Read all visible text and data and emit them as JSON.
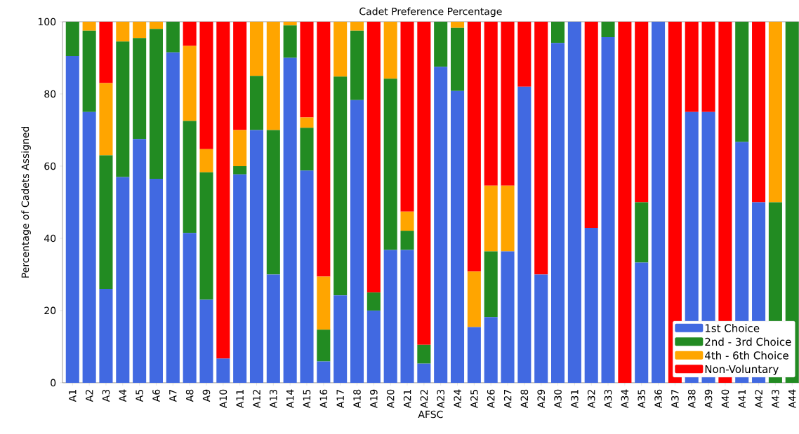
{
  "chart_data": {
    "type": "bar",
    "stacked": true,
    "title": "Cadet Preference Percentage",
    "xlabel": "AFSC",
    "ylabel": "Percentage of Cadets Assigned",
    "categories": [
      "A1",
      "A2",
      "A3",
      "A4",
      "A5",
      "A6",
      "A7",
      "A8",
      "A9",
      "A10",
      "A11",
      "A12",
      "A13",
      "A14",
      "A15",
      "A16",
      "A17",
      "A18",
      "A19",
      "A20",
      "A21",
      "A22",
      "A23",
      "A24",
      "A25",
      "A26",
      "A27",
      "A28",
      "A29",
      "A30",
      "A31",
      "A32",
      "A33",
      "A34",
      "A35",
      "A36",
      "A37",
      "A38",
      "A39",
      "A40",
      "A41",
      "A42",
      "A43",
      "A44"
    ],
    "series": [
      {
        "name": "1st Choice",
        "color": "#4169e1",
        "values": [
          90.5,
          75,
          26,
          57,
          67.5,
          56.5,
          91.5,
          41.5,
          23,
          6.7,
          57.7,
          70,
          30,
          90,
          58.8,
          5.9,
          24.2,
          78.3,
          20,
          36.8,
          36.8,
          5.3,
          87.5,
          80.8,
          15.4,
          18.2,
          36.4,
          82,
          30,
          94.1,
          100,
          42.9,
          95.7,
          0,
          33.3,
          100,
          0,
          75,
          75,
          0,
          66.7,
          50,
          0,
          0
        ]
      },
      {
        "name": "2nd - 3rd Choice",
        "color": "#228b22",
        "values": [
          9.5,
          22.5,
          37,
          37.5,
          28,
          41.5,
          8.5,
          31,
          35.3,
          0,
          2.3,
          15,
          40,
          9,
          11.8,
          8.8,
          60.6,
          19.2,
          5,
          47.4,
          5.3,
          5.2,
          12.5,
          17.5,
          0,
          18.2,
          0,
          0,
          0,
          5.9,
          0,
          0,
          4.3,
          0,
          16.7,
          0,
          0,
          0,
          0,
          0,
          33.3,
          0,
          50,
          100
        ]
      },
      {
        "name": "4th - 6th Choice",
        "color": "#ffa500",
        "values": [
          0,
          2.5,
          20,
          5.5,
          4.5,
          2,
          0,
          20.8,
          6.4,
          0,
          10,
          15,
          30,
          1,
          2.9,
          14.7,
          15.2,
          2.5,
          0,
          15.8,
          5.3,
          0,
          0,
          1.7,
          15.4,
          18.2,
          18.2,
          0,
          0,
          0,
          0,
          0,
          0,
          0,
          0,
          0,
          0,
          0,
          0,
          0,
          0,
          0,
          50,
          0
        ]
      },
      {
        "name": "Non-Voluntary",
        "color": "#ff0000",
        "values": [
          0,
          0,
          17,
          0,
          0,
          0,
          0,
          6.7,
          35.3,
          93.3,
          30,
          0,
          0,
          0,
          26.5,
          70.6,
          0,
          0,
          75,
          0,
          52.6,
          89.5,
          0,
          0,
          69.2,
          45.4,
          45.4,
          18,
          70,
          0,
          0,
          57.1,
          0,
          100,
          50,
          0,
          100,
          25,
          25,
          100,
          0,
          50,
          0,
          0
        ]
      }
    ],
    "ylim": [
      0,
      100
    ],
    "yticks": [
      0,
      20,
      40,
      60,
      80,
      100
    ],
    "grid": false,
    "legend": "bottom right"
  }
}
